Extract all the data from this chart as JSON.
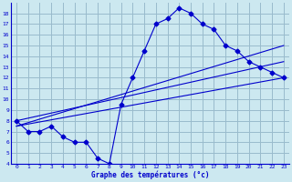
{
  "xlabel": "Graphe des températures (°c)",
  "background_color": "#cce8f0",
  "grid_color": "#99bbcc",
  "line_color": "#0000cc",
  "xlim": [
    -0.5,
    23.5
  ],
  "ylim": [
    4,
    19
  ],
  "xticks": [
    0,
    1,
    2,
    3,
    4,
    5,
    6,
    7,
    8,
    9,
    10,
    11,
    12,
    13,
    14,
    15,
    16,
    17,
    18,
    19,
    20,
    21,
    22,
    23
  ],
  "yticks": [
    4,
    5,
    6,
    7,
    8,
    9,
    10,
    11,
    12,
    13,
    14,
    15,
    16,
    17,
    18
  ],
  "curve1_x": [
    0,
    1,
    2,
    3,
    4,
    5,
    6,
    7,
    8,
    9,
    10,
    11,
    12,
    13,
    14,
    15,
    16,
    17,
    18,
    19,
    20,
    21,
    22,
    23
  ],
  "curve1_y": [
    8.0,
    7.0,
    7.0,
    7.5,
    6.5,
    6.0,
    6.0,
    4.5,
    4.0,
    9.5,
    12.0,
    14.5,
    17.0,
    17.5,
    18.5,
    18.0,
    17.0,
    16.5,
    15.0,
    14.5,
    13.5,
    13.0,
    12.5,
    12.0
  ],
  "line1_x": [
    0,
    23
  ],
  "line1_y": [
    7.5,
    12.0
  ],
  "line2_x": [
    0,
    23
  ],
  "line2_y": [
    8.0,
    13.5
  ],
  "line3_x": [
    0,
    23
  ],
  "line3_y": [
    7.5,
    15.0
  ]
}
